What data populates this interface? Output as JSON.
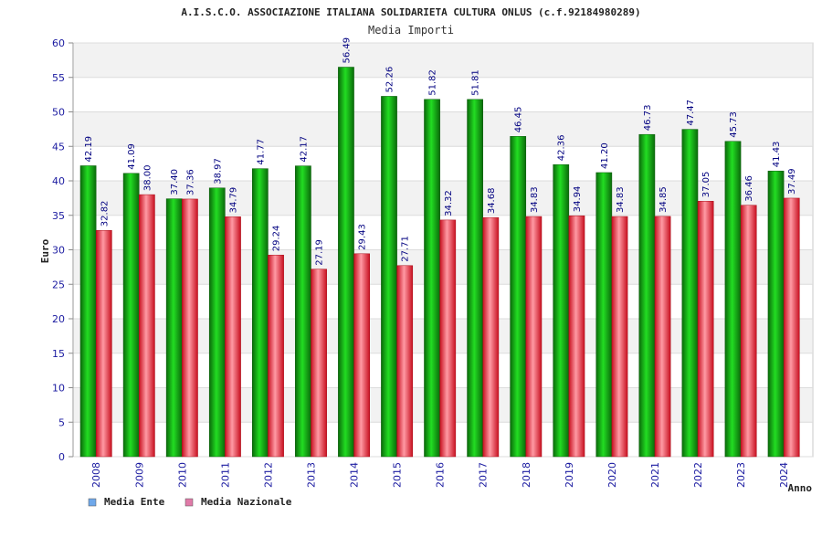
{
  "chart_data": {
    "type": "bar",
    "title": "A.I.S.C.O. ASSOCIAZIONE ITALIANA SOLIDARIETA CULTURA ONLUS (c.f.92184980289)",
    "subtitle": "Media Importi",
    "xlabel": "Anno",
    "ylabel": "Euro",
    "ylim": [
      0,
      60
    ],
    "yticks": [
      "0",
      "5",
      "10",
      "15",
      "20",
      "25",
      "30",
      "35",
      "40",
      "45",
      "50",
      "55",
      "60"
    ],
    "grid": true,
    "legend_position": "bottom-left",
    "categories": [
      "2008",
      "2009",
      "2010",
      "2011",
      "2012",
      "2013",
      "2014",
      "2015",
      "2016",
      "2017",
      "2018",
      "2019",
      "2020",
      "2021",
      "2022",
      "2023",
      "2024"
    ],
    "series": [
      {
        "name": "Media Ente",
        "color": "#00aa00",
        "legend_color": "#6fa8ea",
        "values": [
          42.19,
          41.09,
          37.4,
          38.97,
          41.77,
          42.17,
          56.49,
          52.26,
          51.82,
          51.81,
          46.45,
          42.36,
          41.2,
          46.73,
          47.47,
          45.73,
          41.43
        ],
        "labels": [
          "42.19",
          "41.09",
          "37.40",
          "38.97",
          "41.77",
          "42.17",
          "56.49",
          "52.26",
          "51.82",
          "51.81",
          "46.45",
          "42.36",
          "41.20",
          "46.73",
          "47.47",
          "45.73",
          "41.43"
        ]
      },
      {
        "name": "Media Nazionale",
        "color": "#e8303c",
        "legend_color": "#e07aa8",
        "values": [
          32.82,
          38.0,
          37.36,
          34.79,
          29.24,
          27.19,
          29.43,
          27.71,
          34.32,
          34.68,
          34.83,
          34.94,
          34.83,
          34.85,
          37.05,
          36.46,
          37.49
        ],
        "labels": [
          "32.82",
          "38.00",
          "37.36",
          "34.79",
          "29.24",
          "27.19",
          "29.43",
          "27.71",
          "34.32",
          "34.68",
          "34.83",
          "34.94",
          "34.83",
          "34.85",
          "37.05",
          "36.46",
          "37.49"
        ]
      }
    ]
  }
}
